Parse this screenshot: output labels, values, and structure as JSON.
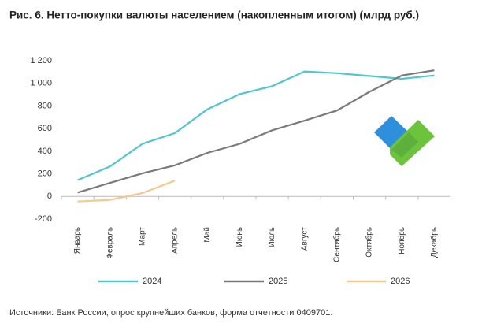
{
  "chart_data": {
    "type": "line",
    "title": "Рис. 6. Нетто-покупки валюты населением (накопленным итогом) (млрд руб.)",
    "source": "Источники: Банк России, опрос крупнейших банков, форма отчетности 0409701.",
    "categories": [
      "Январь",
      "Февраль",
      "Март",
      "Апрель",
      "Май",
      "Июнь",
      "Июль",
      "Август",
      "Сентябрь",
      "Октябрь",
      "Ноябрь",
      "Декабрь"
    ],
    "series": [
      {
        "name": "2024",
        "color": "#4fc7cc",
        "values": [
          145,
          265,
          465,
          560,
          770,
          905,
          975,
          1105,
          1090,
          1065,
          1040,
          1070
        ]
      },
      {
        "name": "2025",
        "color": "#7a7a7a",
        "values": [
          35,
          120,
          205,
          275,
          385,
          465,
          585,
          670,
          760,
          925,
          1070,
          1115
        ]
      },
      {
        "name": "2026",
        "color": "#f5c890",
        "values": [
          -45,
          -30,
          30,
          140,
          null,
          null,
          null,
          null,
          null,
          null,
          null,
          null
        ]
      }
    ],
    "ylim": [
      -200,
      1200
    ],
    "yticks": [
      -200,
      0,
      200,
      400,
      600,
      800,
      {
        "value": 1000,
        "label": "1 000"
      },
      {
        "value": 1200,
        "label": "1 200"
      }
    ],
    "grid": false,
    "legend": "bottom"
  }
}
